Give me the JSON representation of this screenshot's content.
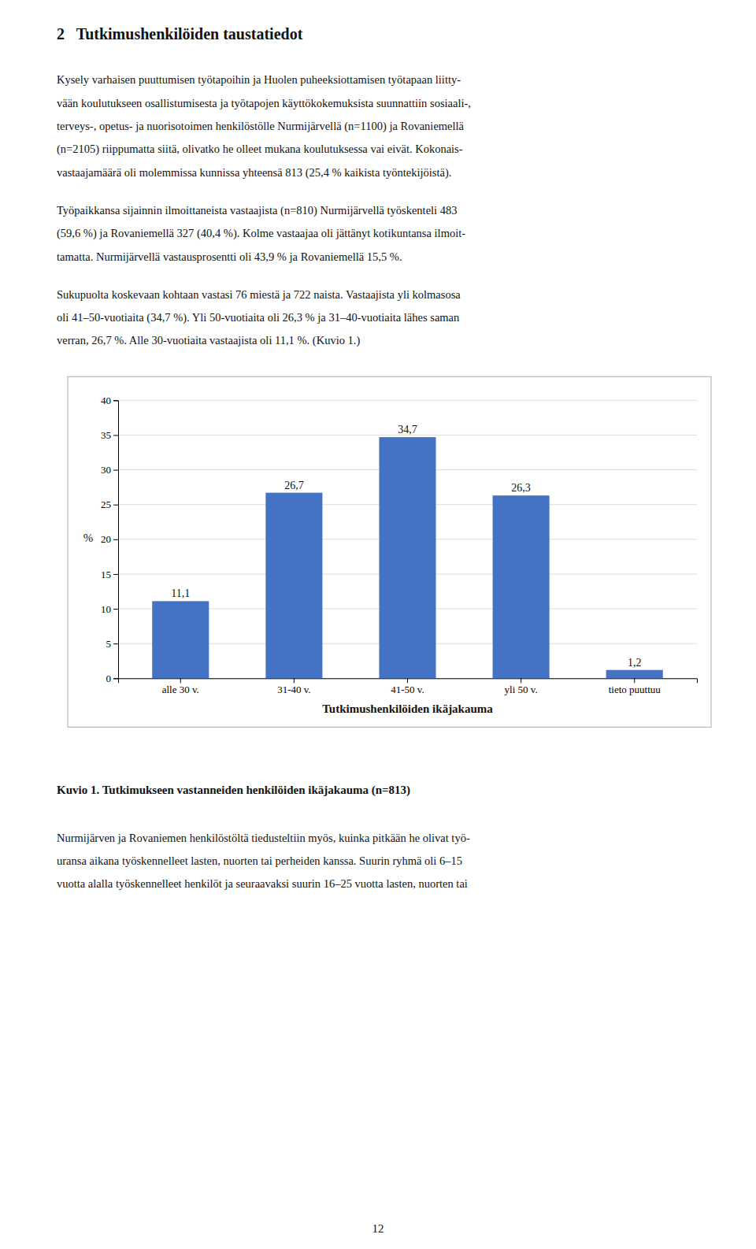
{
  "title": "2   Tutkimushenkilöiden taustatiedot",
  "text_before": [
    [
      "Kysely varhaisen puuttumisen työtapoihin ja Huolen puheeksiottamisen työtapaan liitty-",
      "vään koulutukseen osallistumisesta ja työtapojen käyttökokemuksista suunnattiin sosiaali-,",
      "terveys-, opetus- ja nuorisotoimen henkilöstölle Nurmijärvellä (n=1100) ja Rovaniemellä",
      "(n=2105) riippumatta siitä, olivatko he olleet mukana koulutuksessa vai eivät. Kokonais-",
      "vastaajamäärä oli molemmissa kunnissa yhteensä 813 (25,4 % kaikista työntekijöistä)."
    ],
    [
      "Työpaikkansa sijainnin ilmoittaneista vastaajista (n=810) Nurmijärvellä työskenteli 483",
      "(59,6 %) ja Rovaniemellä 327 (40,4 %). Kolme vastaajaa oli jättänyt kotikuntansa ilmoit-",
      "tamatta. Nurmijärvellä vastausprosentti oli 43,9 % ja Rovaniemellä 15,5 %."
    ],
    [
      "Sukupuolta koskevaan kohtaan vastasi 76 miestä ja 722 naista. Vastaajista yli kolmasosa",
      "oli 41–50-vuotiaita (34,7 %). Yli 50-vuotiaita oli 26,3 % ja 31–40-vuotiaita lähes saman",
      "verran, 26,7 %. Alle 30-vuotiaita vastaajista oli 11,1 %. (Kuvio 1.)"
    ]
  ],
  "chart_data": {
    "type": "bar",
    "categories": [
      "alle 30 v.",
      "31-40 v.",
      "41-50 v.",
      "yli 50 v.",
      "tieto puuttuu"
    ],
    "values": [
      11.1,
      26.7,
      34.7,
      26.3,
      1.2
    ],
    "value_labels": [
      "11,1",
      "26,7",
      "34,7",
      "26,3",
      "1,2"
    ],
    "data_labels": true,
    "color": "#4472c4",
    "xlabel": "Tutkimushenkilöiden ikäjakauma",
    "ylabel": "%",
    "ylim": [
      0,
      40
    ],
    "yticks": [
      0,
      5,
      10,
      15,
      20,
      25,
      30,
      35,
      40
    ],
    "grid": true
  },
  "caption_bold": "Kuvio 1.",
  "caption_rest": " Tutkimukseen vastanneiden henkilöiden ikäjakauma (n=813)",
  "text_after": [
    [
      "Nurmijärven ja Rovaniemen henkilöstöltä tiedusteltiin myös, kuinka pitkään he olivat työ-",
      "uransa aikana työskennelleet lasten, nuorten tai perheiden kanssa. Suurin ryhmä oli 6–15",
      "vuotta alalla työskennelleet henkilöt ja seuraavaksi suurin 16–25 vuotta lasten, nuorten tai"
    ]
  ],
  "page_number": "12"
}
